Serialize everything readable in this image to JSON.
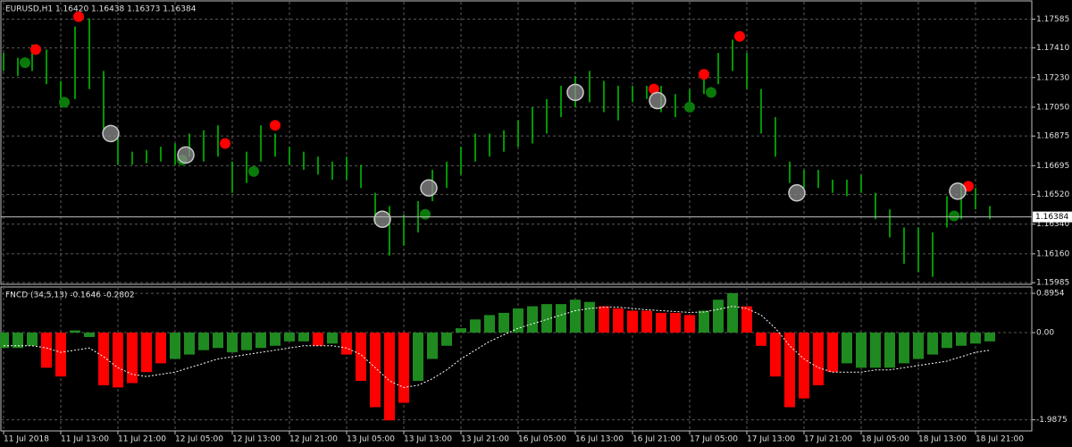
{
  "chart_data": [
    {
      "type": "ohlc",
      "title": "EURUSD,H1  1.16420 1.16438 1.16373 1.16384",
      "color": "#00c800",
      "x": [
        0,
        2,
        4,
        6,
        8,
        10,
        12,
        14,
        16,
        18,
        20,
        22,
        24,
        26,
        28,
        30,
        32,
        34,
        36,
        38,
        40,
        42,
        44,
        46,
        48,
        50,
        52,
        54,
        56,
        58,
        60,
        62,
        64,
        66,
        68,
        70,
        72,
        74,
        76,
        78,
        80,
        82,
        84,
        86,
        88,
        90,
        92,
        94,
        96,
        98,
        100,
        102,
        104,
        106,
        108,
        110,
        112,
        114,
        116,
        118,
        120,
        122,
        124,
        126,
        128,
        130,
        132,
        134,
        136,
        138
      ],
      "high": [
        1.1738,
        1.1735,
        1.1743,
        1.174,
        1.1721,
        1.1754,
        1.1759,
        1.1727,
        1.1689,
        1.1678,
        1.1679,
        1.1681,
        1.1683,
        1.1689,
        1.1691,
        1.1694,
        1.1672,
        1.1678,
        1.1694,
        1.1689,
        1.1681,
        1.1678,
        1.1675,
        1.1672,
        1.1675,
        1.167,
        1.1653,
        1.1645,
        1.164,
        1.1648,
        1.1667,
        1.1672,
        1.1681,
        1.1689,
        1.1689,
        1.1691,
        1.1697,
        1.1705,
        1.171,
        1.1718,
        1.1724,
        1.1727,
        1.1721,
        1.1718,
        1.1718,
        1.1718,
        1.1718,
        1.1713,
        1.1716,
        1.1727,
        1.1738,
        1.1746,
        1.1738,
        1.1716,
        1.1699,
        1.1672,
        1.1667,
        1.1667,
        1.1661,
        1.1661,
        1.1664,
        1.1653,
        1.1643,
        1.1632,
        1.1632,
        1.1629,
        1.1651,
        1.1659,
        1.1656,
        1.1645
      ],
      "low": [
        1.1727,
        1.1724,
        1.1727,
        1.1719,
        1.1705,
        1.171,
        1.1716,
        1.1691,
        1.167,
        1.167,
        1.1671,
        1.1672,
        1.167,
        1.1675,
        1.1672,
        1.1675,
        1.1653,
        1.1659,
        1.1672,
        1.1675,
        1.167,
        1.1667,
        1.1664,
        1.1661,
        1.1661,
        1.1656,
        1.1634,
        1.1615,
        1.1621,
        1.1629,
        1.1648,
        1.1656,
        1.1664,
        1.1672,
        1.1675,
        1.1678,
        1.1681,
        1.1683,
        1.1689,
        1.1699,
        1.1705,
        1.1708,
        1.1702,
        1.1697,
        1.1708,
        1.171,
        1.1702,
        1.1699,
        1.1705,
        1.1713,
        1.1719,
        1.1727,
        1.1716,
        1.1689,
        1.1675,
        1.1659,
        1.1656,
        1.1656,
        1.1653,
        1.1651,
        1.1653,
        1.1637,
        1.1626,
        1.161,
        1.1605,
        1.1602,
        1.1632,
        1.1637,
        1.1643,
        1.1637
      ],
      "signals": [
        {
          "color": "#ff0000",
          "x": [
            4.5,
            10.5,
            31,
            38,
            91,
            98,
            103,
            135
          ],
          "values": [
            1.174,
            1.176,
            1.1683,
            1.1694,
            1.1716,
            1.1725,
            1.1748,
            1.1657
          ]
        },
        {
          "color": "#0a7a0a",
          "x": [
            3,
            8.5,
            25,
            35,
            59,
            96,
            99,
            133
          ],
          "values": [
            1.1732,
            1.1708,
            1.1673,
            1.1666,
            1.164,
            1.1705,
            1.1714,
            1.1639
          ]
        },
        {
          "color": "#8c8c8c",
          "x": [
            15,
            25.5,
            53,
            59.5,
            80,
            91.5,
            111,
            133.5
          ],
          "values": [
            1.1689,
            1.1676,
            1.1637,
            1.1656,
            1.1714,
            1.1709,
            1.1653,
            1.1654
          ]
        }
      ],
      "current_price": 1.16384,
      "xlim": [
        0,
        138
      ],
      "ylim": [
        1.15975,
        1.1769
      ],
      "yticks": [
        1.17585,
        {
          "value": 1.1741,
          "label": "1.17410"
        },
        {
          "value": 1.1723,
          "label": "1.17230"
        },
        {
          "value": 1.1705,
          "label": "1.17050"
        },
        1.16875,
        1.16695,
        {
          "value": 1.1652,
          "label": "1.16520"
        },
        {
          "value": 1.1634,
          "label": "1.16340"
        },
        {
          "value": 1.1616,
          "label": "1.16160"
        },
        1.15985
      ],
      "grid": true
    },
    {
      "type": "histogram",
      "title": "FNCD (34,5,13) -0.1646 -0.2802",
      "x": [
        0,
        2,
        4,
        6,
        8,
        10,
        12,
        14,
        16,
        18,
        20,
        22,
        24,
        26,
        28,
        30,
        32,
        34,
        36,
        38,
        40,
        42,
        44,
        46,
        48,
        50,
        52,
        54,
        56,
        58,
        60,
        62,
        64,
        66,
        68,
        70,
        72,
        74,
        76,
        78,
        80,
        82,
        84,
        86,
        88,
        90,
        92,
        94,
        96,
        98,
        100,
        102,
        104,
        106,
        108,
        110,
        112,
        114,
        116,
        118,
        120,
        122,
        124,
        126,
        128,
        130,
        132,
        134,
        136,
        138
      ],
      "values": [
        -0.35,
        -0.35,
        -0.3,
        -0.8,
        -1.0,
        0.05,
        -0.1,
        -1.2,
        -1.25,
        -1.15,
        -0.9,
        -0.7,
        -0.6,
        -0.5,
        -0.4,
        -0.35,
        -0.45,
        -0.4,
        -0.35,
        -0.3,
        -0.2,
        -0.2,
        -0.3,
        -0.25,
        -0.5,
        -1.1,
        -1.7,
        -2.0,
        -1.6,
        -1.1,
        -0.6,
        -0.3,
        0.1,
        0.3,
        0.4,
        0.45,
        0.55,
        0.6,
        0.65,
        0.65,
        0.75,
        0.7,
        0.6,
        0.55,
        0.5,
        0.5,
        0.45,
        0.45,
        0.4,
        0.5,
        0.75,
        0.9,
        0.6,
        -0.3,
        -1.0,
        -1.7,
        -1.5,
        -1.2,
        -0.9,
        -0.7,
        -0.8,
        -0.8,
        -0.8,
        -0.7,
        -0.6,
        -0.5,
        -0.35,
        -0.3,
        -0.25,
        -0.2
      ],
      "colors": [
        "#1f8a1f",
        "#1f8a1f",
        "#1f8a1f",
        "#ff0000",
        "#ff0000",
        "#1f8a1f",
        "#1f8a1f",
        "#ff0000",
        "#ff0000",
        "#ff0000",
        "#ff0000",
        "#ff0000",
        "#1f8a1f",
        "#1f8a1f",
        "#1f8a1f",
        "#1f8a1f",
        "#1f8a1f",
        "#1f8a1f",
        "#1f8a1f",
        "#1f8a1f",
        "#1f8a1f",
        "#1f8a1f",
        "#ff0000",
        "#1f8a1f",
        "#ff0000",
        "#ff0000",
        "#ff0000",
        "#ff0000",
        "#ff0000",
        "#1f8a1f",
        "#1f8a1f",
        "#1f8a1f",
        "#1f8a1f",
        "#1f8a1f",
        "#1f8a1f",
        "#1f8a1f",
        "#1f8a1f",
        "#1f8a1f",
        "#1f8a1f",
        "#1f8a1f",
        "#1f8a1f",
        "#1f8a1f",
        "#ff0000",
        "#ff0000",
        "#ff0000",
        "#ff0000",
        "#ff0000",
        "#ff0000",
        "#ff0000",
        "#1f8a1f",
        "#1f8a1f",
        "#1f8a1f",
        "#ff0000",
        "#ff0000",
        "#ff0000",
        "#ff0000",
        "#ff0000",
        "#ff0000",
        "#ff0000",
        "#1f8a1f",
        "#1f8a1f",
        "#1f8a1f",
        "#1f8a1f",
        "#1f8a1f",
        "#1f8a1f",
        "#1f8a1f",
        "#1f8a1f",
        "#1f8a1f",
        "#1f8a1f",
        "#1f8a1f"
      ],
      "signal": [
        -0.3,
        -0.3,
        -0.3,
        -0.35,
        -0.45,
        -0.4,
        -0.35,
        -0.55,
        -0.8,
        -0.95,
        -1.0,
        -0.95,
        -0.9,
        -0.8,
        -0.7,
        -0.6,
        -0.55,
        -0.5,
        -0.45,
        -0.4,
        -0.35,
        -0.3,
        -0.3,
        -0.3,
        -0.35,
        -0.5,
        -0.8,
        -1.1,
        -1.25,
        -1.2,
        -1.05,
        -0.85,
        -0.6,
        -0.4,
        -0.2,
        -0.05,
        0.1,
        0.2,
        0.3,
        0.4,
        0.5,
        0.55,
        0.58,
        0.58,
        0.55,
        0.52,
        0.5,
        0.48,
        0.46,
        0.47,
        0.53,
        0.6,
        0.55,
        0.4,
        0.1,
        -0.3,
        -0.6,
        -0.8,
        -0.9,
        -0.9,
        -0.9,
        -0.85,
        -0.85,
        -0.8,
        -0.75,
        -0.7,
        -0.65,
        -0.55,
        -0.45,
        -0.4
      ],
      "signal_color": "#ffffff",
      "xlim": [
        0,
        138
      ],
      "ylim": [
        -2.24,
        1.04
      ],
      "yticks": [
        0.8954,
        {
          "value": 0,
          "label": "0.00"
        },
        -1.9875
      ],
      "xticks": [
        {
          "value": 0,
          "label": "11 Jul 2018"
        },
        {
          "value": 8,
          "label": "11 Jul 13:00"
        },
        {
          "value": 16,
          "label": "11 Jul 21:00"
        },
        {
          "value": 24,
          "label": "12 Jul 05:00"
        },
        {
          "value": 32,
          "label": "12 Jul 13:00"
        },
        {
          "value": 40,
          "label": "12 Jul 21:00"
        },
        {
          "value": 48,
          "label": "13 Jul 05:00"
        },
        {
          "value": 56,
          "label": "13 Jul 13:00"
        },
        {
          "value": 64,
          "label": "13 Jul 21:00"
        },
        {
          "value": 72,
          "label": "16 Jul 05:00"
        },
        {
          "value": 80,
          "label": "16 Jul 13:00"
        },
        {
          "value": 88,
          "label": "16 Jul 21:00"
        },
        {
          "value": 96,
          "label": "17 Jul 05:00"
        },
        {
          "value": 104,
          "label": "17 Jul 13:00"
        },
        {
          "value": 112,
          "label": "17 Jul 21:00"
        },
        {
          "value": 120,
          "label": "18 Jul 05:00"
        },
        {
          "value": 128,
          "label": "18 Jul 13:00"
        },
        {
          "value": 136,
          "label": "18 Jul 21:00"
        }
      ],
      "grid": true
    }
  ]
}
